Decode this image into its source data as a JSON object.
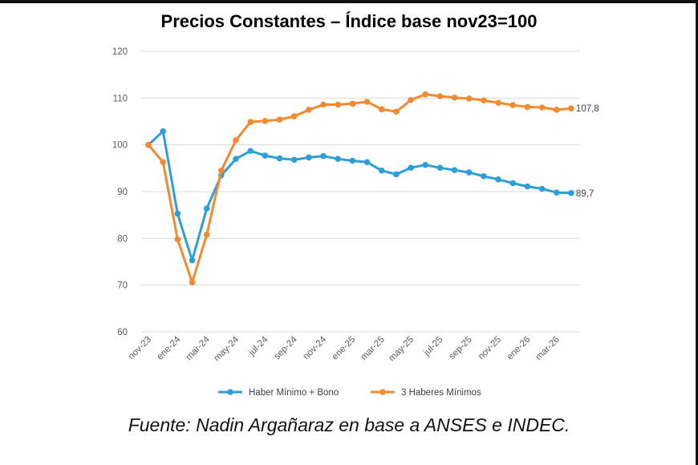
{
  "chart_data": {
    "type": "line",
    "title": "Precios Constantes – Índice base nov23=100",
    "source": "Fuente: Nadin Argañaraz en base a ANSES e INDEC.",
    "xlabel": "",
    "ylabel": "",
    "ylim": [
      60,
      120
    ],
    "yticks": [
      "60",
      "70",
      "80",
      "90",
      "100",
      "110",
      "120"
    ],
    "grid": true,
    "legend_position": "bottom",
    "categories": [
      "nov-23",
      "dic-23",
      "ene-24",
      "feb-24",
      "mar-24",
      "abr-24",
      "may-24",
      "jun-24",
      "jul-24",
      "ago-24",
      "sep-24",
      "oct-24",
      "nov-24",
      "dic-24",
      "ene-25",
      "feb-25",
      "mar-25",
      "abr-25",
      "may-25",
      "jun-25",
      "jul-25",
      "ago-25",
      "sep-25",
      "oct-25",
      "nov-25",
      "dic-25",
      "ene-26",
      "feb-26",
      "mar-26",
      "abr-26"
    ],
    "tick_labels": [
      "nov-23",
      "ene-24",
      "mar-24",
      "may-24",
      "jul-24",
      "sep-24",
      "nov-24",
      "ene-25",
      "mar-25",
      "may-25",
      "jul-25",
      "sep-25",
      "nov-25",
      "ene-26",
      "mar-26"
    ],
    "series": [
      {
        "name": "Haber Mínimo + Bono",
        "color": "#2E9FD6",
        "end_label": "89,7",
        "values": [
          100,
          102.9,
          85.3,
          75.3,
          86.4,
          93.5,
          97.0,
          98.7,
          97.7,
          97.1,
          96.8,
          97.3,
          97.6,
          97.0,
          96.6,
          96.3,
          94.5,
          93.7,
          95.1,
          95.7,
          95.1,
          94.6,
          94.1,
          93.3,
          92.6,
          91.8,
          91.1,
          90.6,
          89.8,
          89.7
        ]
      },
      {
        "name": "3 Haberes Mínimos",
        "color": "#F28A30",
        "end_label": "107,8",
        "values": [
          100,
          96.3,
          79.8,
          70.6,
          80.8,
          94.5,
          101.0,
          104.9,
          105.1,
          105.4,
          106.1,
          107.5,
          108.6,
          108.6,
          108.8,
          109.2,
          107.6,
          107.1,
          109.6,
          110.8,
          110.4,
          110.1,
          109.9,
          109.5,
          109.0,
          108.5,
          108.1,
          108.0,
          107.5,
          107.8
        ]
      }
    ]
  }
}
